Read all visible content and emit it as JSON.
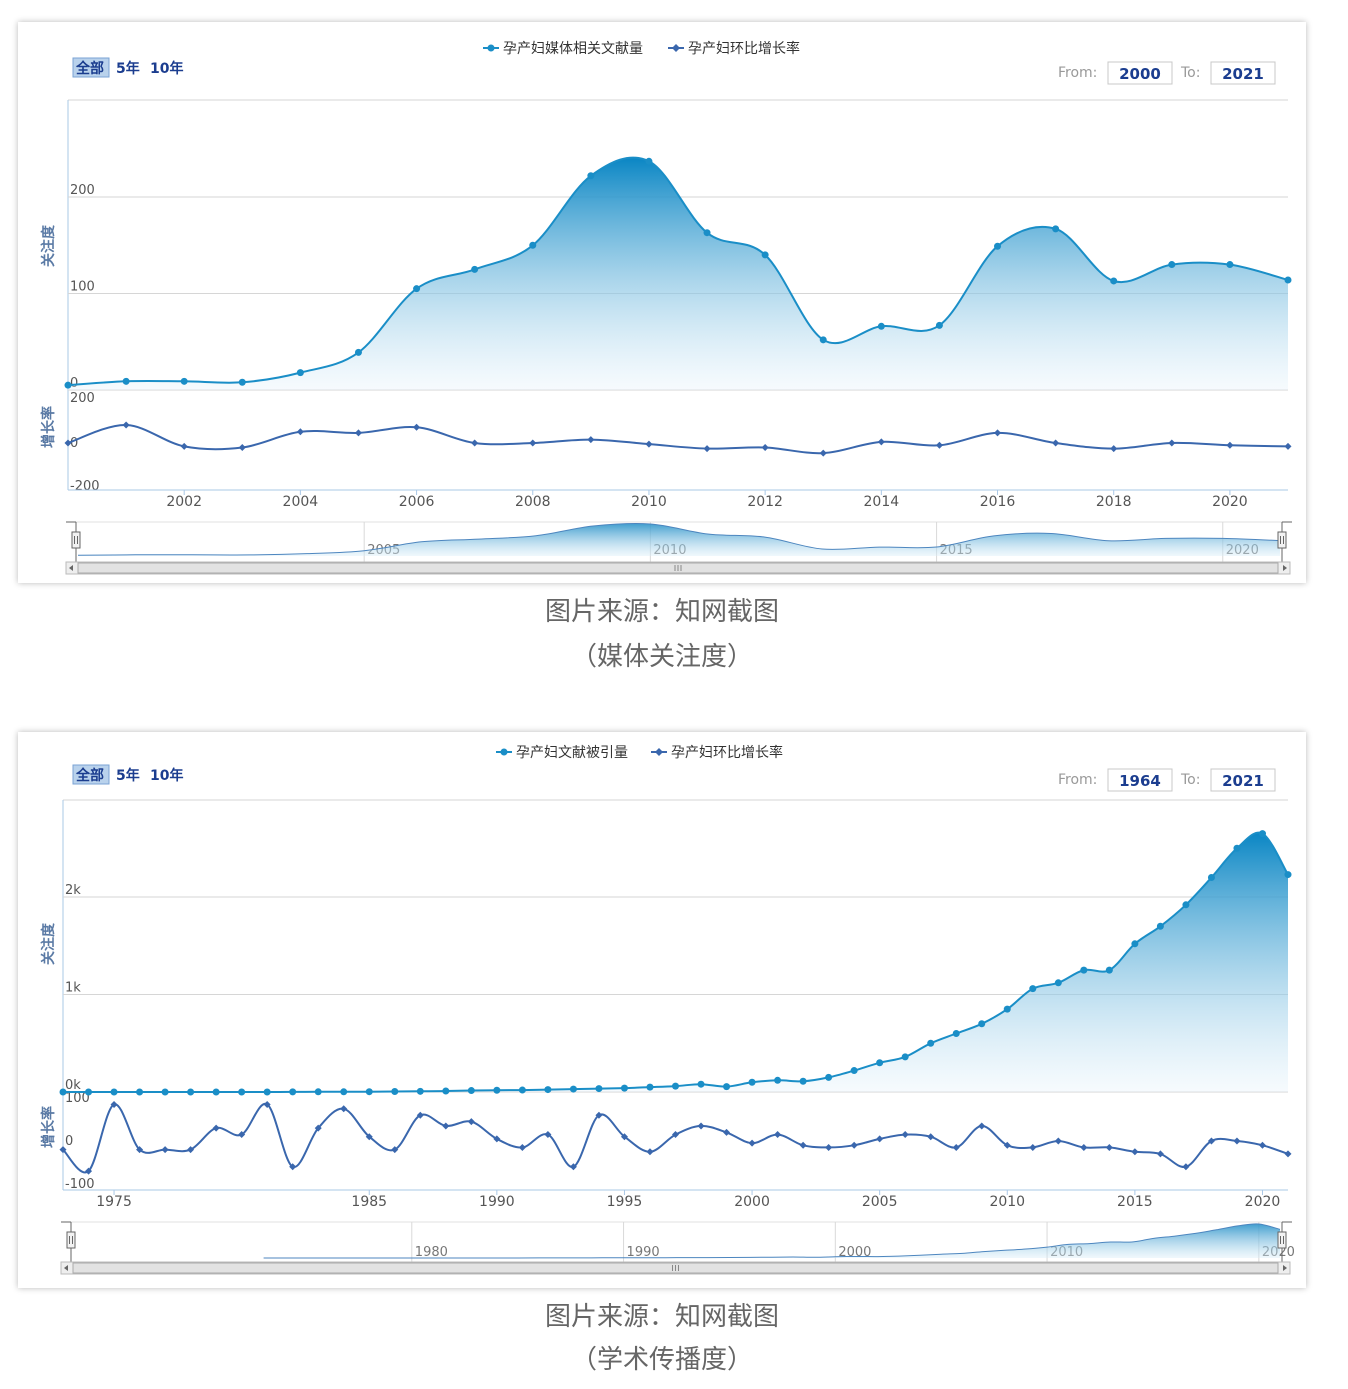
{
  "colors": {
    "area_line": "#1a8ec7",
    "growth_line": "#3a67ad",
    "grid": "#d6d6d6",
    "axis_text": "#555555",
    "nav_text": "#1b3d8f"
  },
  "charts": [
    {
      "legend": [
        "孕产妇媒体相关文献量",
        "孕产妇环比增长率"
      ],
      "range_buttons": [
        "全部",
        "5年",
        "10年"
      ],
      "from_label": "From:",
      "from_value": "2000",
      "to_label": "To:",
      "to_value": "2021",
      "y_title_top": "关注度",
      "y_title_bottom": "增长率",
      "top_ticks": [
        "0",
        "100",
        "200"
      ],
      "bottom_ticks": [
        "200",
        "0",
        "-200"
      ],
      "x_ticks": [
        "2002",
        "2004",
        "2006",
        "2008",
        "2010",
        "2012",
        "2014",
        "2016",
        "2018",
        "2020"
      ],
      "navigator_ticks": [
        "2005",
        "2010",
        "2015",
        "2020"
      ],
      "caption_line1": "图片来源：知网截图",
      "caption_line2": "（媒体关注度）"
    },
    {
      "legend": [
        "孕产妇文献被引量",
        "孕产妇环比增长率"
      ],
      "range_buttons": [
        "全部",
        "5年",
        "10年"
      ],
      "from_label": "From:",
      "from_value": "1964",
      "to_label": "To:",
      "to_value": "2021",
      "y_title_top": "关注度",
      "y_title_bottom": "增长率",
      "top_ticks": [
        "0k",
        "1k",
        "2k"
      ],
      "bottom_ticks": [
        "100",
        "0",
        "-100"
      ],
      "x_ticks": [
        "1975",
        "1985",
        "1990",
        "1995",
        "2000",
        "2005",
        "2010",
        "2015",
        "2020"
      ],
      "navigator_ticks": [
        "1980",
        "1990",
        "2000",
        "2010",
        "2020"
      ],
      "caption_line1": "图片来源：知网截图",
      "caption_line2": "（学术传播度）"
    }
  ],
  "chart_data": [
    {
      "type": "area",
      "title": "",
      "series": [
        {
          "name": "孕产妇媒体相关文献量",
          "x": [
            2000,
            2001,
            2002,
            2003,
            2004,
            2005,
            2006,
            2007,
            2008,
            2009,
            2010,
            2011,
            2012,
            2013,
            2014,
            2015,
            2016,
            2017,
            2018,
            2019,
            2020,
            2021
          ],
          "values": [
            5,
            9,
            9,
            8,
            18,
            39,
            105,
            125,
            150,
            222,
            237,
            163,
            140,
            52,
            66,
            67,
            149,
            167,
            113,
            130,
            130,
            114
          ]
        },
        {
          "name": "孕产妇环比增长率",
          "x": [
            2000,
            2001,
            2002,
            2003,
            2004,
            2005,
            2006,
            2007,
            2008,
            2009,
            2010,
            2011,
            2012,
            2013,
            2014,
            2015,
            2016,
            2017,
            2018,
            2019,
            2020,
            2021
          ],
          "values": [
            0,
            80,
            -15,
            -20,
            50,
            45,
            70,
            0,
            0,
            15,
            -5,
            -25,
            -20,
            -45,
            5,
            -10,
            45,
            0,
            -25,
            0,
            -10,
            -15
          ]
        }
      ],
      "x_range": [
        2000,
        2021
      ],
      "top_ylim": [
        0,
        300
      ],
      "bottom_ylim": [
        -200,
        200
      ],
      "grid": true,
      "legend_position": "top-center"
    },
    {
      "type": "area",
      "title": "",
      "series": [
        {
          "name": "孕产妇文献被引量",
          "x": [
            1973,
            1974,
            1975,
            1976,
            1977,
            1978,
            1979,
            1980,
            1981,
            1982,
            1983,
            1984,
            1985,
            1986,
            1987,
            1988,
            1989,
            1990,
            1991,
            1992,
            1993,
            1994,
            1995,
            1996,
            1997,
            1998,
            1999,
            2000,
            2001,
            2002,
            2003,
            2004,
            2005,
            2006,
            2007,
            2008,
            2009,
            2010,
            2011,
            2012,
            2013,
            2014,
            2015,
            2016,
            2017,
            2018,
            2019,
            2020,
            2021
          ],
          "values": [
            0,
            0,
            0,
            0,
            0,
            0,
            0,
            0,
            0,
            1,
            2,
            2,
            3,
            5,
            7,
            10,
            15,
            18,
            20,
            25,
            30,
            35,
            40,
            50,
            60,
            80,
            55,
            100,
            120,
            110,
            150,
            220,
            300,
            360,
            500,
            600,
            700,
            850,
            1060,
            1120,
            1250,
            1250,
            1520,
            1700,
            1920,
            2200,
            2500,
            2650,
            2230
          ]
        },
        {
          "name": "孕产妇环比增长率",
          "x": [
            1973,
            1974,
            1975,
            1976,
            1977,
            1978,
            1979,
            1980,
            1981,
            1982,
            1983,
            1984,
            1985,
            1986,
            1987,
            1988,
            1989,
            1990,
            1991,
            1992,
            1993,
            1994,
            1995,
            1996,
            1997,
            1998,
            1999,
            2000,
            2001,
            2002,
            2003,
            2004,
            2005,
            2006,
            2007,
            2008,
            2009,
            2010,
            2011,
            2012,
            2013,
            2014,
            2015,
            2016,
            2017,
            2018,
            2019,
            2020,
            2021
          ],
          "values": [
            -20,
            -70,
            85,
            -20,
            -20,
            -20,
            30,
            15,
            85,
            -60,
            30,
            75,
            10,
            -20,
            60,
            35,
            45,
            5,
            -15,
            15,
            -60,
            60,
            10,
            -25,
            15,
            35,
            20,
            -5,
            15,
            -10,
            -15,
            -10,
            5,
            15,
            10,
            -15,
            35,
            -10,
            -15,
            0,
            -15,
            -15,
            -25,
            -30,
            -60,
            0,
            0,
            -10,
            -30
          ]
        }
      ],
      "x_range": [
        1973,
        2021
      ],
      "top_ylim": [
        0,
        3000
      ],
      "bottom_ylim": [
        -100,
        100
      ],
      "grid": true,
      "legend_position": "top-center"
    }
  ]
}
